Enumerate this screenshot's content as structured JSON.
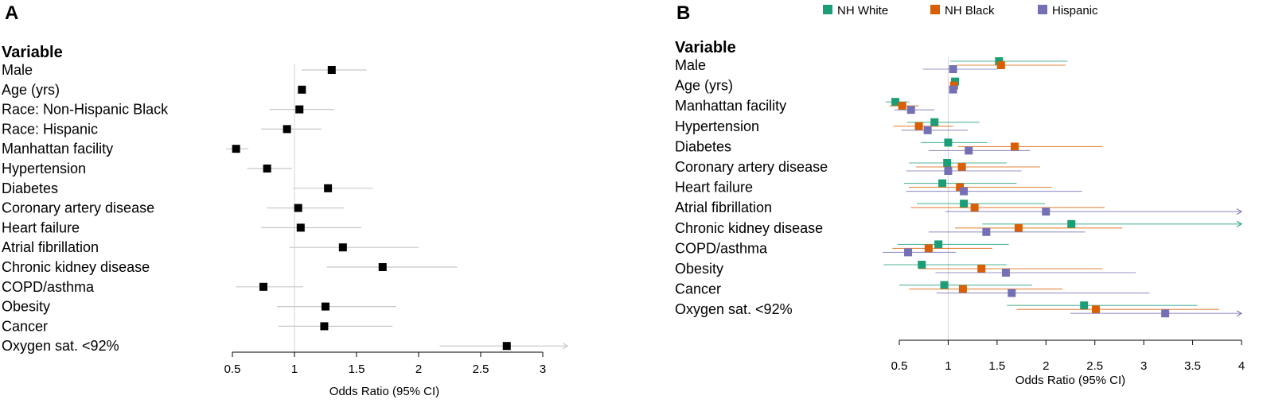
{
  "chart_data": [
    {
      "type": "forest",
      "panel": "A",
      "header": "Variable",
      "xlabel": "Odds Ratio (95% CI)",
      "xlim": [
        0.5,
        3
      ],
      "xticks": [
        "0.5",
        "1",
        "1.5",
        "2",
        "2.5",
        "3"
      ],
      "reference_line": 1,
      "marker_color": "#000000",
      "ci_color": "#c8c8c8",
      "rows": [
        {
          "label": "Male",
          "or": 1.3,
          "lo": 1.06,
          "hi": 1.58
        },
        {
          "label": "Age (yrs)",
          "or": 1.06,
          "lo": 1.05,
          "hi": 1.07
        },
        {
          "label": "Race: Non-Hispanic Black",
          "or": 1.04,
          "lo": 0.8,
          "hi": 1.32
        },
        {
          "label": "Race: Hispanic",
          "or": 0.94,
          "lo": 0.73,
          "hi": 1.22
        },
        {
          "label": "Manhattan facility",
          "or": 0.53,
          "lo": 0.45,
          "hi": 0.63
        },
        {
          "label": "Hypertension",
          "or": 0.78,
          "lo": 0.62,
          "hi": 0.98
        },
        {
          "label": "Diabetes",
          "or": 1.27,
          "lo": 0.99,
          "hi": 1.63
        },
        {
          "label": "Coronary artery disease",
          "or": 1.03,
          "lo": 0.78,
          "hi": 1.4
        },
        {
          "label": "Heart failure",
          "or": 1.05,
          "lo": 0.73,
          "hi": 1.54
        },
        {
          "label": "Atrial fibrillation",
          "or": 1.39,
          "lo": 0.96,
          "hi": 2.0
        },
        {
          "label": "Chronic kidney disease",
          "or": 1.71,
          "lo": 1.26,
          "hi": 2.31
        },
        {
          "label": "COPD/asthma",
          "or": 0.75,
          "lo": 0.53,
          "hi": 1.07
        },
        {
          "label": "Obesity",
          "or": 1.25,
          "lo": 0.86,
          "hi": 1.82
        },
        {
          "label": "Cancer",
          "or": 1.24,
          "lo": 0.87,
          "hi": 1.79
        },
        {
          "label": "Oxygen sat. <92%",
          "or": 2.71,
          "lo": 2.17,
          "hi": 3.2,
          "hi_arrow": true
        }
      ]
    },
    {
      "type": "forest",
      "panel": "B",
      "header": "Variable",
      "xlabel": "Odds Ratio (95% CI)",
      "xlim": [
        0.5,
        4
      ],
      "xticks": [
        "0.5",
        "1",
        "1.5",
        "2",
        "2.5",
        "3",
        "3.5",
        "4"
      ],
      "reference_line": 1,
      "series": [
        {
          "name": "NH White",
          "color": "#1b9e77"
        },
        {
          "name": "NH Black",
          "color": "#d95f02"
        },
        {
          "name": "Hispanic",
          "color": "#7570b3"
        }
      ],
      "rows": [
        {
          "label": "Male",
          "values": [
            {
              "or": 1.52,
              "lo": 1.02,
              "hi": 2.22
            },
            {
              "or": 1.54,
              "lo": 1.09,
              "hi": 2.2
            },
            {
              "or": 1.05,
              "lo": 0.74,
              "hi": 1.5
            }
          ]
        },
        {
          "label": "Age (yrs)",
          "values": [
            {
              "or": 1.07,
              "lo": 1.05,
              "hi": 1.09
            },
            {
              "or": 1.06,
              "lo": 1.04,
              "hi": 1.08
            },
            {
              "or": 1.05,
              "lo": 1.03,
              "hi": 1.07
            }
          ]
        },
        {
          "label": "Manhattan facility",
          "values": [
            {
              "or": 0.46,
              "lo": 0.36,
              "hi": 0.6
            },
            {
              "or": 0.53,
              "lo": 0.4,
              "hi": 0.7
            },
            {
              "or": 0.62,
              "lo": 0.45,
              "hi": 0.86
            }
          ]
        },
        {
          "label": "Hypertension",
          "values": [
            {
              "or": 0.86,
              "lo": 0.58,
              "hi": 1.32
            },
            {
              "or": 0.7,
              "lo": 0.44,
              "hi": 1.05
            },
            {
              "or": 0.79,
              "lo": 0.52,
              "hi": 1.2
            }
          ]
        },
        {
          "label": "Diabetes",
          "values": [
            {
              "or": 1.0,
              "lo": 0.72,
              "hi": 1.4
            },
            {
              "or": 1.68,
              "lo": 1.1,
              "hi": 2.58
            },
            {
              "or": 1.21,
              "lo": 0.8,
              "hi": 1.84
            }
          ]
        },
        {
          "label": "Coronary artery disease",
          "values": [
            {
              "or": 0.99,
              "lo": 0.6,
              "hi": 1.6
            },
            {
              "or": 1.14,
              "lo": 0.67,
              "hi": 1.94
            },
            {
              "or": 1.0,
              "lo": 0.57,
              "hi": 1.75
            }
          ]
        },
        {
          "label": "Heart failure",
          "values": [
            {
              "or": 0.94,
              "lo": 0.55,
              "hi": 1.7
            },
            {
              "or": 1.12,
              "lo": 0.6,
              "hi": 2.06
            },
            {
              "or": 1.16,
              "lo": 0.57,
              "hi": 2.37
            }
          ]
        },
        {
          "label": "Atrial fibrillation",
          "values": [
            {
              "or": 1.16,
              "lo": 0.68,
              "hi": 1.99
            },
            {
              "or": 1.27,
              "lo": 0.62,
              "hi": 2.6
            },
            {
              "or": 2.0,
              "lo": 0.97,
              "hi": 4.0,
              "hi_arrow": true
            }
          ]
        },
        {
          "label": "Chronic kidney disease",
          "values": [
            {
              "or": 2.26,
              "lo": 1.35,
              "hi": 4.0,
              "hi_arrow": true
            },
            {
              "or": 1.72,
              "lo": 1.07,
              "hi": 2.78
            },
            {
              "or": 1.39,
              "lo": 0.8,
              "hi": 2.4
            }
          ]
        },
        {
          "label": "COPD/asthma",
          "values": [
            {
              "or": 0.9,
              "lo": 0.48,
              "hi": 1.62
            },
            {
              "or": 0.8,
              "lo": 0.43,
              "hi": 1.45
            },
            {
              "or": 0.59,
              "lo": 0.33,
              "hi": 1.08
            }
          ]
        },
        {
          "label": "Obesity",
          "values": [
            {
              "or": 0.73,
              "lo": 0.34,
              "hi": 1.6
            },
            {
              "or": 1.34,
              "lo": 0.7,
              "hi": 2.58
            },
            {
              "or": 1.59,
              "lo": 0.87,
              "hi": 2.92
            }
          ]
        },
        {
          "label": "Cancer",
          "values": [
            {
              "or": 0.96,
              "lo": 0.5,
              "hi": 1.86
            },
            {
              "or": 1.15,
              "lo": 0.6,
              "hi": 2.17
            },
            {
              "or": 1.65,
              "lo": 0.88,
              "hi": 3.06
            }
          ]
        },
        {
          "label": "Oxygen sat. <92%",
          "values": [
            {
              "or": 2.39,
              "lo": 1.6,
              "hi": 3.55
            },
            {
              "or": 2.51,
              "lo": 1.7,
              "hi": 3.77
            },
            {
              "or": 3.22,
              "lo": 2.25,
              "hi": 4.0,
              "hi_arrow": true
            }
          ]
        }
      ]
    }
  ]
}
